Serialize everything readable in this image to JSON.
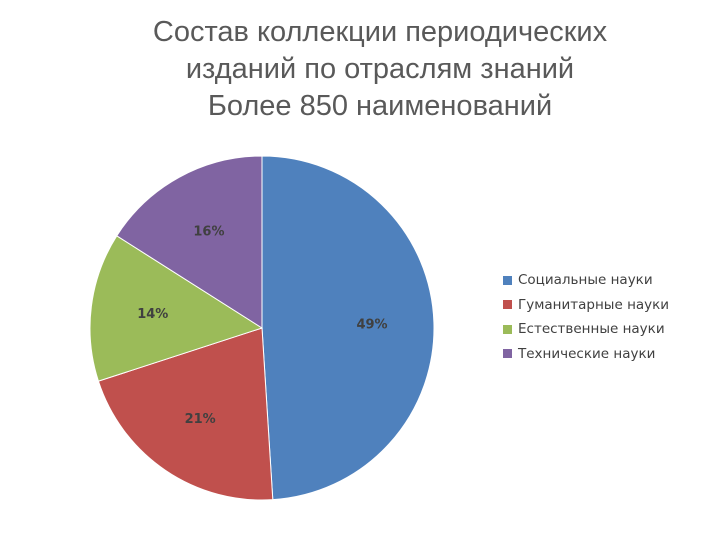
{
  "title_lines": [
    "Состав коллекции периодических",
    "изданий по отраслям знаний",
    "Более 850 наименований"
  ],
  "chart_data": {
    "type": "pie",
    "title": "",
    "slices": [
      {
        "label": "Социальные науки",
        "value": 49,
        "value_label": "49%",
        "color": "#4F81BD"
      },
      {
        "label": "Гуманитарные науки",
        "value": 21,
        "value_label": "21%",
        "color": "#C0504D"
      },
      {
        "label": "Естественные науки",
        "value": 14,
        "value_label": "14%",
        "color": "#9BBB59"
      },
      {
        "label": "Технические науки",
        "value": 16,
        "value_label": "16%",
        "color": "#8064A2"
      }
    ],
    "legend_position": "right"
  }
}
